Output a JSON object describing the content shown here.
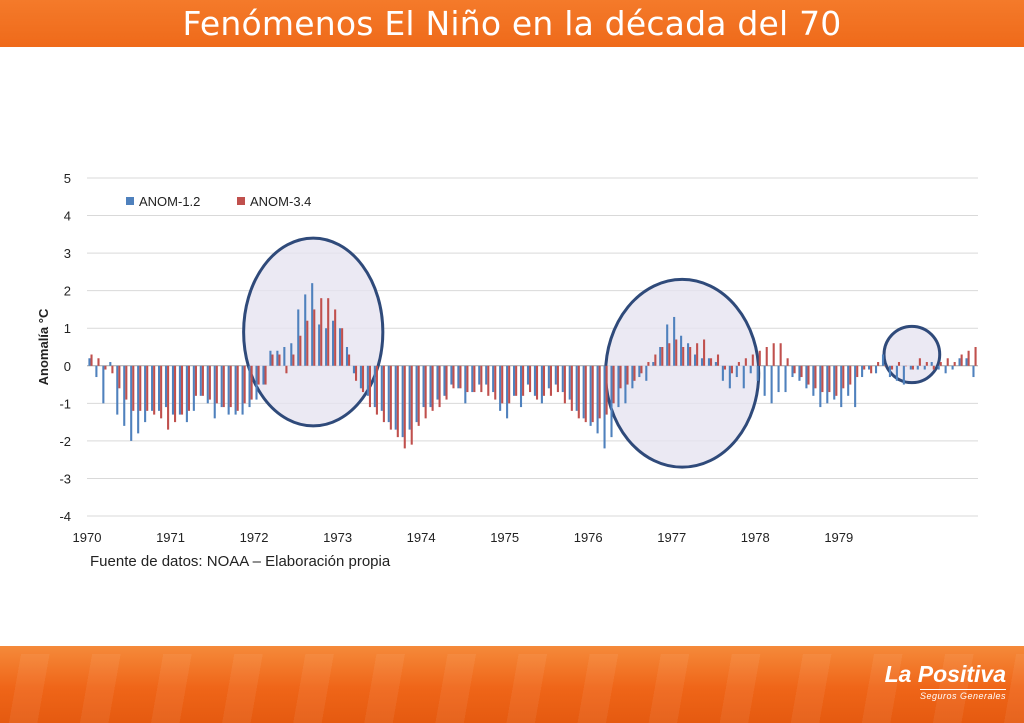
{
  "page": {
    "title": "Fenómenos El Niño en la década del 70",
    "source": "Fuente de datos: NOAA – Elaboración propia",
    "logo_text": "La Positiva",
    "logo_subtext": "Seguros Generales",
    "colors": {
      "header": "#ef6a1a",
      "footer": "#ef6518",
      "series1": "#4f81bd",
      "series2": "#c0504d",
      "circle": "#2f4a7a",
      "circle_fill": "#e6e3f0"
    }
  },
  "chart_data": {
    "type": "bar",
    "title": "",
    "xlabel": "",
    "ylabel": "Anomalía °C",
    "ylim": [
      -4,
      5
    ],
    "yticks": [
      5,
      4,
      3,
      2,
      1,
      0,
      -1,
      -2,
      -3,
      -4
    ],
    "grid": true,
    "legend_position": "top-left",
    "x_tick_labels": [
      "1970",
      "1971",
      "1972",
      "1973",
      "1974",
      "1975",
      "1976",
      "1977",
      "1978",
      "1979"
    ],
    "x_start": "1970-01",
    "frequency": "monthly",
    "annotations": [
      {
        "type": "circle",
        "x_center": "1972-09",
        "y_center": 0.9,
        "x_radius_months": 10,
        "y_radius": 2.5
      },
      {
        "type": "circle",
        "x_center": "1977-02",
        "y_center": -0.2,
        "x_radius_months": 11,
        "y_radius": 2.5
      },
      {
        "type": "circle",
        "x_center": "1979-11",
        "y_center": 0.3,
        "x_radius_months": 4,
        "y_radius": 0.75
      }
    ],
    "series": [
      {
        "name": "ANOM-1.2",
        "values": [
          0.2,
          -0.3,
          -1.0,
          0.1,
          -1.3,
          -1.6,
          -2.0,
          -1.8,
          -1.5,
          -1.2,
          -1.2,
          -1.1,
          -1.3,
          -1.3,
          -1.5,
          -1.2,
          -0.8,
          -1.0,
          -1.4,
          -1.1,
          -1.3,
          -1.3,
          -1.3,
          -1.1,
          -0.9,
          -0.5,
          0.4,
          0.4,
          0.5,
          0.6,
          1.5,
          1.9,
          2.2,
          1.1,
          1.0,
          1.2,
          1.0,
          0.5,
          -0.2,
          -0.6,
          -0.8,
          -1.1,
          -1.2,
          -1.5,
          -1.7,
          -1.9,
          -1.7,
          -1.5,
          -1.1,
          -1.1,
          -0.9,
          -0.8,
          -0.5,
          -0.6,
          -1.0,
          -0.7,
          -0.5,
          -0.5,
          -0.7,
          -1.2,
          -1.4,
          -0.8,
          -1.1,
          -0.5,
          -0.8,
          -1.0,
          -0.6,
          -0.5,
          -0.7,
          -0.9,
          -1.2,
          -1.4,
          -1.6,
          -1.8,
          -2.2,
          -1.9,
          -1.1,
          -1.0,
          -0.6,
          -0.3,
          -0.4,
          0.1,
          0.5,
          1.1,
          1.3,
          0.8,
          0.6,
          0.3,
          0.2,
          0.2,
          0.1,
          -0.4,
          -0.6,
          -0.3,
          -0.6,
          -0.2,
          -0.4,
          -0.8,
          -1.0,
          -0.7,
          -0.7,
          -0.3,
          -0.4,
          -0.6,
          -0.8,
          -1.1,
          -1.0,
          -0.9,
          -1.1,
          -0.8,
          -1.1,
          -0.3,
          -0.1,
          -0.2,
          0.3,
          -0.3,
          -0.4,
          -0.5,
          -0.1,
          -0.1,
          -0.1,
          0.1,
          -0.1,
          -0.2,
          -0.1,
          0.2,
          0.2,
          -0.3
        ]
      },
      {
        "name": "ANOM-3.4",
        "values": [
          0.3,
          0.2,
          -0.1,
          -0.2,
          -0.6,
          -0.9,
          -1.2,
          -1.2,
          -1.2,
          -1.3,
          -1.4,
          -1.7,
          -1.5,
          -1.3,
          -1.2,
          -0.8,
          -0.8,
          -0.9,
          -1.0,
          -1.1,
          -1.1,
          -1.2,
          -1.0,
          -0.9,
          -0.5,
          -0.5,
          0.3,
          0.3,
          -0.2,
          0.3,
          0.8,
          1.2,
          1.5,
          1.8,
          1.8,
          1.5,
          1.0,
          0.3,
          -0.4,
          -0.7,
          -1.1,
          -1.3,
          -1.5,
          -1.7,
          -1.9,
          -2.2,
          -2.1,
          -1.6,
          -1.4,
          -1.2,
          -1.1,
          -0.9,
          -0.6,
          -0.6,
          -0.7,
          -0.7,
          -0.7,
          -0.8,
          -0.9,
          -1.0,
          -1.0,
          -0.8,
          -0.8,
          -0.7,
          -0.9,
          -0.8,
          -0.8,
          -0.7,
          -1.0,
          -1.2,
          -1.4,
          -1.5,
          -1.5,
          -1.4,
          -1.3,
          -1.0,
          -0.6,
          -0.5,
          -0.4,
          -0.2,
          0.1,
          0.3,
          0.5,
          0.6,
          0.7,
          0.5,
          0.5,
          0.6,
          0.7,
          0.2,
          0.3,
          -0.1,
          -0.2,
          0.1,
          0.2,
          0.3,
          0.4,
          0.5,
          0.6,
          0.6,
          0.2,
          -0.2,
          -0.3,
          -0.5,
          -0.6,
          -0.7,
          -0.7,
          -0.8,
          -0.6,
          -0.5,
          -0.3,
          -0.1,
          -0.2,
          0.1,
          0.0,
          -0.1,
          0.1,
          0.0,
          -0.1,
          0.2,
          0.1,
          -0.1,
          0.1,
          0.2,
          0.1,
          0.3,
          0.4,
          0.5
        ]
      }
    ]
  }
}
